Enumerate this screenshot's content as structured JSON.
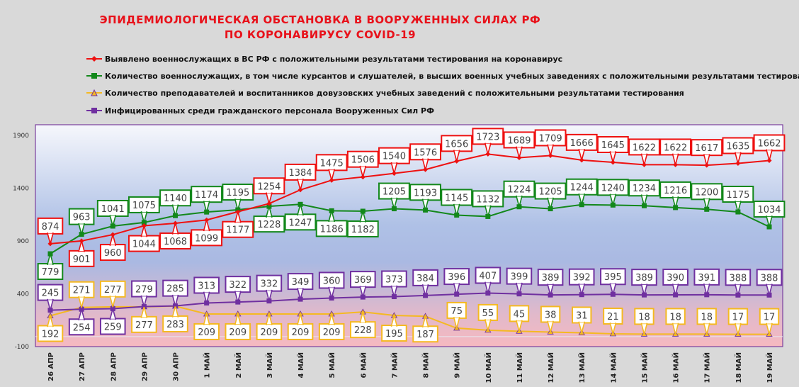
{
  "chart_data": {
    "type": "line",
    "title": [
      "ЭПИДЕМИОЛОГИЧЕСКАЯ ОБСТАНОВКА В ВООРУЖЕННЫХ СИЛАХ РФ",
      "ПО КОРОНАВИРУСУ COVID-19"
    ],
    "xlabel": "",
    "ylabel": "",
    "ylim": [
      -100,
      1900
    ],
    "yticks": [
      "1900",
      "1400",
      "900",
      "400",
      "-100"
    ],
    "ytick_values": [
      1900,
      1400,
      900,
      400,
      -100
    ],
    "legend_position": "top",
    "categories": [
      "26 АПР",
      "27 АПР",
      "28 АПР",
      "29 АПР",
      "30 АПР",
      "1 МАЙ",
      "2 МАЙ",
      "3 МАЙ",
      "4 МАЙ",
      "5 МАЙ",
      "6 МАЙ",
      "7 МАЙ",
      "8 МАЙ",
      "9 МАЙ",
      "10 МАЙ",
      "11 МАЙ",
      "12 МАЙ",
      "13 МАЙ",
      "14 МАЙ",
      "15 МАЙ",
      "16 МАЙ",
      "17 МАЙ",
      "18 МАЙ",
      "19 МАЙ"
    ],
    "series": [
      {
        "name": "Выявлено военнослужащих в ВС РФ с положительными результатами тестирования на коронавирус",
        "color": "#ee1111",
        "marker": "diamond",
        "values": [
          874,
          901,
          960,
          1044,
          1068,
          1099,
          1177,
          1254,
          1384,
          1475,
          1506,
          1540,
          1576,
          1656,
          1723,
          1689,
          1709,
          1666,
          1645,
          1622,
          1622,
          1617,
          1635,
          1662
        ]
      },
      {
        "name": "Количество военнослужащих, в том числе курсантов и слушателей, в высших военных учебных заведениях с положительными результатами тестирования",
        "color": "#13881b",
        "marker": "square",
        "values": [
          779,
          963,
          1041,
          1075,
          1140,
          1174,
          1195,
          1228,
          1247,
          1186,
          1182,
          1205,
          1193,
          1145,
          1132,
          1224,
          1205,
          1244,
          1240,
          1234,
          1216,
          1200,
          1175,
          1034
        ]
      },
      {
        "name": "Количество преподавателей и воспитанников довузовских учебных заведений с положительными результатами тестирования",
        "color": "#f5b921",
        "marker": "triangle",
        "values": [
          192,
          271,
          277,
          277,
          283,
          209,
          209,
          209,
          209,
          209,
          228,
          195,
          187,
          75,
          55,
          45,
          38,
          31,
          21,
          18,
          18,
          18,
          17,
          17
        ]
      },
      {
        "name": "Инфицированных среди гражданского персонала Вооруженных Сил РФ",
        "color": "#7030a0",
        "marker": "square",
        "values": [
          245,
          254,
          259,
          279,
          285,
          313,
          322,
          332,
          349,
          360,
          369,
          373,
          384,
          396,
          407,
          399,
          389,
          392,
          395,
          389,
          390,
          391,
          388,
          388
        ]
      }
    ]
  }
}
